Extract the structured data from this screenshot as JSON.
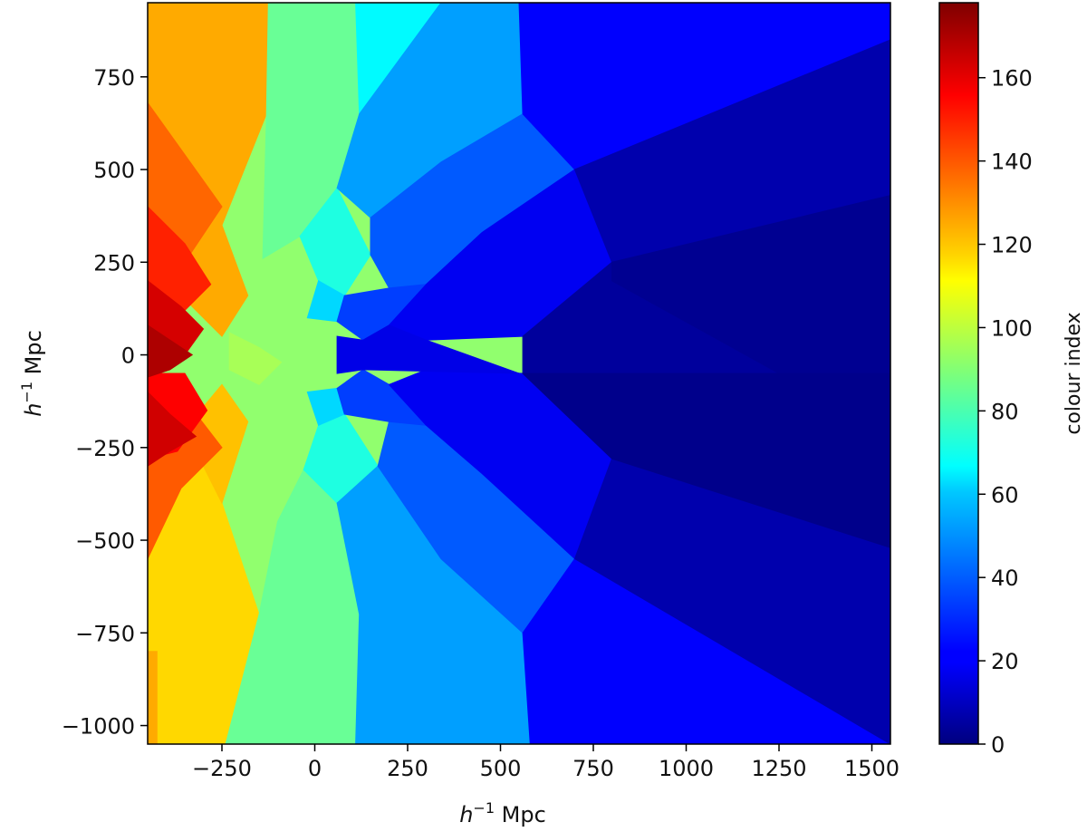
{
  "chart_data": {
    "type": "heatmap",
    "xlabel": "h⁻¹ Mpc",
    "ylabel": "h⁻¹ Mpc",
    "colorbar_label": "colour index",
    "colormap": "jet",
    "xlim": [
      -450,
      1550
    ],
    "ylim": [
      -1050,
      950
    ],
    "clim": [
      0,
      178
    ],
    "xticks": [
      -250,
      0,
      250,
      500,
      750,
      1000,
      1250,
      1500
    ],
    "xtick_labels": [
      "−250",
      "0",
      "250",
      "500",
      "750",
      "1000",
      "1250",
      "1500"
    ],
    "yticks": [
      750,
      500,
      250,
      0,
      -250,
      -500,
      -750,
      -1000
    ],
    "ytick_labels": [
      "750",
      "500",
      "250",
      "0",
      "−250",
      "−500",
      "−750",
      "−1000"
    ],
    "cticks": [
      0,
      20,
      40,
      60,
      80,
      100,
      120,
      140,
      160
    ],
    "ctick_labels": [
      "0",
      "20",
      "40",
      "60",
      "80",
      "100",
      "120",
      "140",
      "160"
    ],
    "regions": [
      {
        "value": 92,
        "points": [
          [
            -450,
            950
          ],
          [
            1550,
            950
          ],
          [
            1550,
            -1050
          ],
          [
            -450,
            -1050
          ]
        ]
      },
      {
        "value": 126,
        "points": [
          [
            -450,
            950
          ],
          [
            -125,
            950
          ],
          [
            -130,
            650
          ],
          [
            -250,
            350
          ],
          [
            -350,
            150
          ],
          [
            -450,
            100
          ]
        ]
      },
      {
        "value": 118,
        "points": [
          [
            -450,
            -150
          ],
          [
            -350,
            -200
          ],
          [
            -250,
            -400
          ],
          [
            -150,
            -700
          ],
          [
            -240,
            -1050
          ],
          [
            -450,
            -1050
          ]
        ]
      },
      {
        "value": 126,
        "points": [
          [
            -250,
            350
          ],
          [
            -180,
            160
          ],
          [
            -250,
            50
          ],
          [
            -350,
            150
          ]
        ]
      },
      {
        "value": 122,
        "points": [
          [
            -250,
            -400
          ],
          [
            -180,
            -180
          ],
          [
            -250,
            -80
          ],
          [
            -350,
            -200
          ]
        ]
      },
      {
        "value": 138,
        "points": [
          [
            -450,
            680
          ],
          [
            -300,
            470
          ],
          [
            -250,
            400
          ],
          [
            -350,
            250
          ],
          [
            -450,
            300
          ]
        ]
      },
      {
        "value": 140,
        "points": [
          [
            -450,
            -550
          ],
          [
            -360,
            -360
          ],
          [
            -250,
            -250
          ],
          [
            -350,
            -120
          ],
          [
            -450,
            -150
          ]
        ]
      },
      {
        "value": 150,
        "points": [
          [
            -450,
            400
          ],
          [
            -350,
            300
          ],
          [
            -280,
            190
          ],
          [
            -350,
            120
          ],
          [
            -450,
            200
          ]
        ]
      },
      {
        "value": 156,
        "points": [
          [
            -450,
            -280
          ],
          [
            -370,
            -260
          ],
          [
            -290,
            -150
          ],
          [
            -350,
            -50
          ],
          [
            -450,
            -50
          ]
        ]
      },
      {
        "value": 163,
        "points": [
          [
            -450,
            200
          ],
          [
            -360,
            130
          ],
          [
            -300,
            70
          ],
          [
            -350,
            0
          ],
          [
            -450,
            60
          ]
        ]
      },
      {
        "value": 170,
        "points": [
          [
            -450,
            80
          ],
          [
            -390,
            40
          ],
          [
            -330,
            0
          ],
          [
            -390,
            -40
          ],
          [
            -450,
            -60
          ]
        ]
      },
      {
        "value": 164,
        "points": [
          [
            -450,
            -100
          ],
          [
            -390,
            -160
          ],
          [
            -320,
            -220
          ],
          [
            -390,
            -260
          ],
          [
            -450,
            -300
          ]
        ]
      },
      {
        "value": 126,
        "points": [
          [
            -450,
            950
          ],
          [
            -425,
            950
          ],
          [
            -425,
            700
          ],
          [
            -450,
            700
          ]
        ]
      },
      {
        "value": 126,
        "points": [
          [
            -450,
            -800
          ],
          [
            -425,
            -800
          ],
          [
            -425,
            -1050
          ],
          [
            -450,
            -1050
          ]
        ]
      },
      {
        "value": 96,
        "points": [
          [
            -230,
            60
          ],
          [
            -150,
            20
          ],
          [
            -90,
            -20
          ],
          [
            -150,
            -80
          ],
          [
            -230,
            -40
          ]
        ]
      },
      {
        "value": 85,
        "points": [
          [
            -125,
            950
          ],
          [
            110,
            950
          ],
          [
            120,
            650
          ],
          [
            60,
            450
          ],
          [
            -40,
            320
          ],
          [
            -140,
            260
          ],
          [
            -130,
            650
          ]
        ]
      },
      {
        "value": 85,
        "points": [
          [
            -150,
            -700
          ],
          [
            -100,
            -450
          ],
          [
            -30,
            -310
          ],
          [
            60,
            -400
          ],
          [
            120,
            -700
          ],
          [
            110,
            -1050
          ],
          [
            -60,
            -1050
          ],
          [
            -240,
            -1050
          ]
        ]
      },
      {
        "value": 72,
        "points": [
          [
            -40,
            320
          ],
          [
            60,
            450
          ],
          [
            150,
            270
          ],
          [
            80,
            160
          ],
          [
            10,
            200
          ]
        ]
      },
      {
        "value": 72,
        "points": [
          [
            -30,
            -310
          ],
          [
            60,
            -400
          ],
          [
            170,
            -300
          ],
          [
            80,
            -160
          ],
          [
            10,
            -190
          ]
        ]
      },
      {
        "value": 66,
        "points": [
          [
            110,
            950
          ],
          [
            340,
            950
          ],
          [
            120,
            650
          ]
        ]
      },
      {
        "value": 60,
        "points": [
          [
            10,
            200
          ],
          [
            80,
            160
          ],
          [
            60,
            90
          ],
          [
            -20,
            100
          ]
        ]
      },
      {
        "value": 60,
        "points": [
          [
            10,
            -190
          ],
          [
            80,
            -160
          ],
          [
            60,
            -90
          ],
          [
            -20,
            -100
          ]
        ]
      },
      {
        "value": 50,
        "points": [
          [
            120,
            650
          ],
          [
            340,
            950
          ],
          [
            550,
            950
          ],
          [
            560,
            650
          ],
          [
            340,
            520
          ],
          [
            150,
            370
          ],
          [
            60,
            450
          ]
        ]
      },
      {
        "value": 50,
        "points": [
          [
            120,
            -700
          ],
          [
            60,
            -400
          ],
          [
            170,
            -300
          ],
          [
            340,
            -550
          ],
          [
            560,
            -750
          ],
          [
            580,
            -1050
          ],
          [
            340,
            -1050
          ],
          [
            110,
            -1050
          ]
        ]
      },
      {
        "value": 38,
        "points": [
          [
            150,
            270
          ],
          [
            150,
            370
          ],
          [
            340,
            520
          ],
          [
            560,
            650
          ],
          [
            700,
            500
          ],
          [
            450,
            330
          ],
          [
            300,
            190
          ],
          [
            200,
            180
          ]
        ]
      },
      {
        "value": 38,
        "points": [
          [
            170,
            -300
          ],
          [
            200,
            -180
          ],
          [
            300,
            -190
          ],
          [
            450,
            -320
          ],
          [
            700,
            -550
          ],
          [
            560,
            -750
          ],
          [
            340,
            -550
          ]
        ]
      },
      {
        "value": 33,
        "points": [
          [
            80,
            160
          ],
          [
            200,
            180
          ],
          [
            300,
            190
          ],
          [
            200,
            80
          ],
          [
            130,
            40
          ],
          [
            60,
            90
          ]
        ]
      },
      {
        "value": 33,
        "points": [
          [
            80,
            -160
          ],
          [
            200,
            -180
          ],
          [
            300,
            -190
          ],
          [
            200,
            -80
          ],
          [
            130,
            -40
          ],
          [
            60,
            -90
          ]
        ]
      },
      {
        "value": 22,
        "points": [
          [
            550,
            950
          ],
          [
            1550,
            950
          ],
          [
            1550,
            850
          ],
          [
            700,
            500
          ],
          [
            560,
            650
          ]
        ]
      },
      {
        "value": 22,
        "points": [
          [
            560,
            -750
          ],
          [
            700,
            -550
          ],
          [
            1550,
            -1050
          ],
          [
            900,
            -1050
          ],
          [
            580,
            -1050
          ]
        ]
      },
      {
        "value": 20,
        "points": [
          [
            300,
            190
          ],
          [
            450,
            330
          ],
          [
            700,
            500
          ],
          [
            800,
            250
          ],
          [
            560,
            50
          ],
          [
            300,
            40
          ],
          [
            200,
            80
          ]
        ]
      },
      {
        "value": 20,
        "points": [
          [
            300,
            -190
          ],
          [
            450,
            -320
          ],
          [
            700,
            -550
          ],
          [
            800,
            -280
          ],
          [
            560,
            -50
          ],
          [
            300,
            -40
          ],
          [
            200,
            -80
          ]
        ]
      },
      {
        "value": 18,
        "points": [
          [
            130,
            40
          ],
          [
            200,
            80
          ],
          [
            300,
            40
          ],
          [
            550,
            -50
          ],
          [
            130,
            -40
          ],
          [
            60,
            -50
          ],
          [
            60,
            50
          ]
        ]
      },
      {
        "value": 8,
        "points": [
          [
            700,
            500
          ],
          [
            1550,
            850
          ],
          [
            1550,
            430
          ],
          [
            800,
            250
          ]
        ]
      },
      {
        "value": 8,
        "points": [
          [
            700,
            -550
          ],
          [
            1550,
            -1050
          ],
          [
            1550,
            -520
          ],
          [
            800,
            -280
          ]
        ]
      },
      {
        "value": 5,
        "points": [
          [
            560,
            50
          ],
          [
            800,
            250
          ],
          [
            1550,
            430
          ],
          [
            1550,
            -50
          ],
          [
            1250,
            -50
          ],
          [
            560,
            -50
          ]
        ]
      },
      {
        "value": 5,
        "points": [
          [
            560,
            -50
          ],
          [
            800,
            -280
          ],
          [
            1550,
            -520
          ],
          [
            1550,
            -50
          ]
        ]
      },
      {
        "value": 3,
        "points": [
          [
            800,
            250
          ],
          [
            1550,
            430
          ],
          [
            1550,
            -50
          ],
          [
            1250,
            -50
          ],
          [
            800,
            200
          ]
        ]
      },
      {
        "value": 2,
        "points": [
          [
            800,
            -280
          ],
          [
            1550,
            -520
          ],
          [
            1550,
            -50
          ],
          [
            560,
            -50
          ]
        ]
      }
    ]
  }
}
